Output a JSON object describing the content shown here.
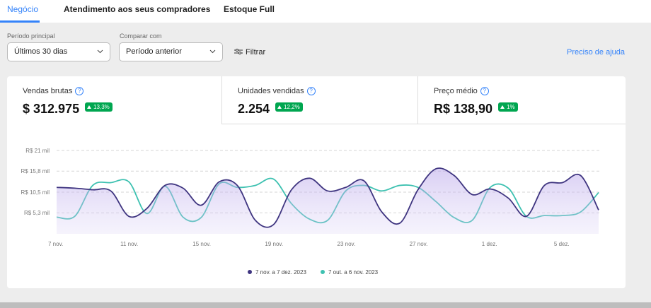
{
  "tabs": [
    "Negócio",
    "Atendimento aos seus compradores",
    "Estoque Full"
  ],
  "filters": {
    "main": {
      "label": "Período principal",
      "value": "Últimos 30 dias"
    },
    "compare": {
      "label": "Comparar com",
      "value": "Período anterior"
    },
    "filter_button": "Filtrar",
    "help": "Preciso de ajuda"
  },
  "kpis": [
    {
      "label": "Vendas brutas",
      "value": "$ 312.975",
      "change": "13,3%"
    },
    {
      "label": "Unidades vendidas",
      "value": "2.254",
      "change": "12,2%"
    },
    {
      "label": "Preço médio",
      "value": "R$ 138,90",
      "change": "1%"
    }
  ],
  "chart_data": {
    "type": "line",
    "categories": [
      "7 nov.",
      null,
      null,
      null,
      "11 nov.",
      null,
      null,
      null,
      "15 nov.",
      null,
      null,
      null,
      "19 nov.",
      null,
      null,
      null,
      "23 nov.",
      null,
      null,
      null,
      "27 nov.",
      null,
      null,
      null,
      "1 dez.",
      null,
      null,
      null,
      "5 dez.",
      null,
      null
    ],
    "series": [
      {
        "name": "7 nov. a 7 dez. 2023",
        "color": "#3f3580",
        "values": [
          11.7,
          11.5,
          11.1,
          10.8,
          4.4,
          6.4,
          12.2,
          11.5,
          7.2,
          13.1,
          12.2,
          3.4,
          2.3,
          11.1,
          14.0,
          10.8,
          11.7,
          13.4,
          5.5,
          2.7,
          11.1,
          16.4,
          14.7,
          9.9,
          11.3,
          9.0,
          4.4,
          12.2,
          12.9,
          14.7,
          6.0
        ]
      },
      {
        "name": "7 out. a 6 nov. 2023",
        "color": "#3ec1b1",
        "values": [
          4.2,
          4.4,
          12.2,
          12.9,
          13.1,
          5.1,
          12.0,
          4.2,
          4.1,
          12.6,
          11.7,
          12.2,
          13.8,
          7.6,
          3.7,
          3.4,
          10.8,
          12.2,
          10.8,
          12.2,
          11.7,
          8.1,
          4.1,
          3.4,
          11.7,
          11.5,
          4.4,
          4.6,
          4.6,
          5.5,
          10.4
        ]
      }
    ],
    "ylim": [
      0,
      21
    ],
    "yticks": [
      {
        "value": 5.3,
        "label": "R$ 5,3 mil"
      },
      {
        "value": 10.5,
        "label": "R$ 10,5 mil"
      },
      {
        "value": 15.8,
        "label": "R$ 15,8 mil"
      },
      {
        "value": 21,
        "label": "R$ 21 mil"
      }
    ],
    "grid": true,
    "legend": "bottom"
  }
}
